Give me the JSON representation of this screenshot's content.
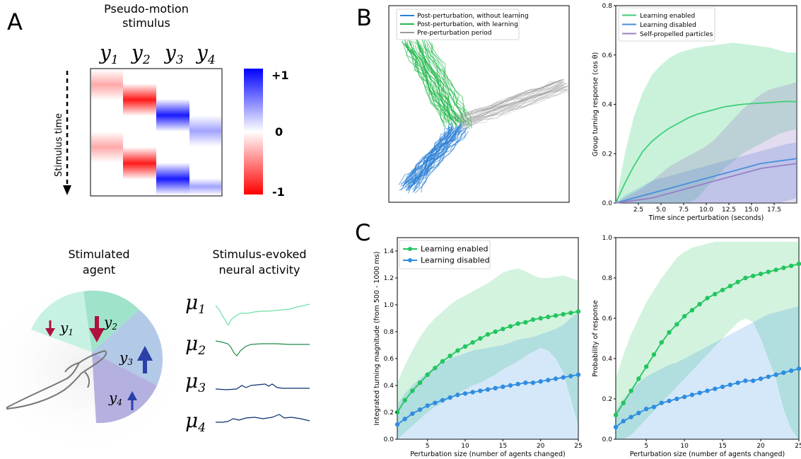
{
  "panels": {
    "A": "A",
    "B": "B",
    "C": "C"
  },
  "panelA": {
    "stim_title_1": "Pseudo-motion",
    "stim_title_2": "stimulus",
    "y_labels": [
      "y",
      "y",
      "y",
      "y"
    ],
    "y_subs": [
      "1",
      "2",
      "3",
      "4"
    ],
    "time_label": "Stimulus time",
    "colorbar": {
      "top": "+1",
      "mid": "0",
      "bottom": "-1"
    },
    "agent_title_1": "Stimulated",
    "agent_title_2": "agent",
    "neural_title_1": "Stimulus-evoked",
    "neural_title_2": "neural activity",
    "mu_labels": [
      "μ",
      "μ",
      "μ",
      "μ"
    ],
    "mu_subs": [
      "1",
      "2",
      "3",
      "4"
    ],
    "sector_labels": [
      "y",
      "y",
      "y",
      "y"
    ],
    "sector_subs": [
      "1",
      "2",
      "3",
      "4"
    ]
  },
  "chart_data": [
    {
      "type": "line",
      "id": "trajectories",
      "legend": [
        "Post-perturbation, without learning",
        "Post-perturbation, with learning",
        "Pre-perturbation period"
      ],
      "colors": {
        "without": "#2a7fd4",
        "with": "#22b84a",
        "pre": "#9a9a9a"
      }
    },
    {
      "type": "line",
      "id": "group-turning",
      "xlabel": "Time since perturbation (seconds)",
      "ylabel": "Group turning response (cos θ)",
      "xlim": [
        0,
        20
      ],
      "ylim": [
        0,
        0.8
      ],
      "xticks": [
        2.5,
        5.0,
        7.5,
        10.0,
        12.5,
        15.0,
        17.5
      ],
      "yticks": [
        0.0,
        0.2,
        0.4,
        0.6,
        0.8
      ],
      "x": [
        0,
        1,
        2,
        3,
        4,
        5,
        6,
        7,
        8,
        9,
        10,
        11,
        12,
        13,
        14,
        15,
        16,
        17,
        18,
        19,
        20
      ],
      "series": [
        {
          "name": "Learning enabled",
          "color": "#3fcf7a",
          "values": [
            0.0,
            0.08,
            0.15,
            0.21,
            0.25,
            0.28,
            0.305,
            0.325,
            0.345,
            0.36,
            0.37,
            0.38,
            0.39,
            0.395,
            0.4,
            0.403,
            0.405,
            0.407,
            0.41,
            0.412,
            0.41
          ],
          "upper": [
            0.0,
            0.2,
            0.35,
            0.45,
            0.52,
            0.56,
            0.59,
            0.61,
            0.62,
            0.63,
            0.635,
            0.64,
            0.645,
            0.65,
            0.645,
            0.64,
            0.635,
            0.63,
            0.62,
            0.61,
            0.61
          ],
          "lower": [
            0.0,
            0.0,
            0.0,
            0.0,
            0.0,
            0.0,
            0.0,
            0.0,
            0.0,
            0.02,
            0.06,
            0.1,
            0.14,
            0.17,
            0.2,
            0.22,
            0.24,
            0.26,
            0.28,
            0.29,
            0.3
          ]
        },
        {
          "name": "Learning disabled",
          "color": "#4a8fd8",
          "values": [
            0.0,
            0.01,
            0.02,
            0.03,
            0.04,
            0.05,
            0.06,
            0.07,
            0.08,
            0.09,
            0.1,
            0.11,
            0.12,
            0.13,
            0.14,
            0.15,
            0.16,
            0.165,
            0.17,
            0.175,
            0.18
          ],
          "upper": [
            0.0,
            0.03,
            0.05,
            0.07,
            0.09,
            0.1,
            0.11,
            0.12,
            0.13,
            0.14,
            0.15,
            0.16,
            0.17,
            0.18,
            0.19,
            0.2,
            0.21,
            0.22,
            0.23,
            0.24,
            0.245
          ],
          "lower": [
            0.0,
            0.0,
            0.0,
            0.0,
            0.0,
            0.0,
            0.0,
            0.0,
            0.0,
            0.0,
            0.0,
            0.0,
            0.0,
            0.0,
            0.0,
            0.0,
            0.0,
            0.0,
            0.0,
            0.01,
            0.02
          ]
        },
        {
          "name": "Self-propelled particles",
          "color": "#9a7fc8",
          "values": [
            0.0,
            0.005,
            0.01,
            0.015,
            0.02,
            0.03,
            0.04,
            0.05,
            0.06,
            0.07,
            0.08,
            0.09,
            0.1,
            0.11,
            0.12,
            0.13,
            0.14,
            0.145,
            0.15,
            0.155,
            0.16
          ],
          "upper": [
            0.0,
            0.02,
            0.04,
            0.06,
            0.09,
            0.12,
            0.15,
            0.17,
            0.19,
            0.21,
            0.23,
            0.26,
            0.3,
            0.34,
            0.38,
            0.41,
            0.44,
            0.46,
            0.47,
            0.48,
            0.49
          ],
          "lower": [
            0.0,
            0.0,
            0.0,
            0.0,
            0.0,
            0.0,
            0.0,
            0.0,
            0.0,
            0.0,
            0.0,
            0.0,
            0.0,
            0.0,
            0.0,
            0.0,
            0.0,
            0.0,
            0.0,
            0.0,
            0.0
          ]
        }
      ]
    },
    {
      "type": "line",
      "id": "integrated-turning",
      "xlabel": "Perturbation size (number of agents changed)",
      "ylabel": "Integrated turning magnitude (from 500 - 1000 ms)",
      "xlim": [
        1,
        25
      ],
      "ylim": [
        0,
        1.5
      ],
      "xticks": [
        5,
        10,
        15,
        20,
        25
      ],
      "yticks": [
        0.0,
        0.2,
        0.4,
        0.6,
        0.8,
        1.0,
        1.2,
        1.4
      ],
      "x": [
        1,
        2,
        3,
        4,
        5,
        6,
        7,
        8,
        9,
        10,
        11,
        12,
        13,
        14,
        15,
        16,
        17,
        18,
        19,
        20,
        21,
        22,
        23,
        24,
        25
      ],
      "series": [
        {
          "name": "Learning enabled",
          "color": "#22c55e",
          "values": [
            0.2,
            0.29,
            0.36,
            0.42,
            0.48,
            0.53,
            0.58,
            0.62,
            0.66,
            0.69,
            0.72,
            0.75,
            0.78,
            0.8,
            0.82,
            0.84,
            0.86,
            0.87,
            0.89,
            0.9,
            0.91,
            0.92,
            0.93,
            0.94,
            0.95
          ],
          "upper": [
            0.42,
            0.55,
            0.66,
            0.76,
            0.84,
            0.9,
            0.95,
            1.0,
            1.04,
            1.07,
            1.1,
            1.13,
            1.16,
            1.2,
            1.24,
            1.26,
            1.27,
            1.25,
            1.22,
            1.2,
            1.2,
            1.21,
            1.22,
            1.2,
            1.18
          ],
          "lower": [
            0.0,
            0.05,
            0.1,
            0.15,
            0.2,
            0.24,
            0.27,
            0.3,
            0.34,
            0.37,
            0.4,
            0.42,
            0.45,
            0.48,
            0.52,
            0.55,
            0.58,
            0.62,
            0.65,
            0.68,
            0.66,
            0.6,
            0.5,
            0.3,
            0.1
          ]
        },
        {
          "name": "Learning disabled",
          "color": "#2f8de0",
          "values": [
            0.11,
            0.15,
            0.19,
            0.22,
            0.25,
            0.27,
            0.29,
            0.31,
            0.33,
            0.34,
            0.35,
            0.36,
            0.37,
            0.38,
            0.39,
            0.4,
            0.41,
            0.42,
            0.42,
            0.43,
            0.44,
            0.45,
            0.46,
            0.47,
            0.48
          ],
          "upper": [
            0.26,
            0.34,
            0.4,
            0.45,
            0.5,
            0.54,
            0.57,
            0.6,
            0.62,
            0.64,
            0.66,
            0.67,
            0.68,
            0.69,
            0.7,
            0.72,
            0.74,
            0.75,
            0.76,
            0.78,
            0.8,
            0.82,
            0.85,
            0.9,
            0.95
          ],
          "lower": [
            0.0,
            0.0,
            0.0,
            0.0,
            0.0,
            0.0,
            0.0,
            0.0,
            0.0,
            0.0,
            0.0,
            0.0,
            0.0,
            0.0,
            0.0,
            0.0,
            0.0,
            0.0,
            0.0,
            0.0,
            0.0,
            0.0,
            0.0,
            0.0,
            0.0
          ]
        }
      ]
    },
    {
      "type": "line",
      "id": "probability-response",
      "xlabel": "Perturbation size (number of agents changed)",
      "ylabel": "Probability of response",
      "xlim": [
        1,
        25
      ],
      "ylim": [
        0,
        1.0
      ],
      "xticks": [
        5,
        10,
        15,
        20,
        25
      ],
      "yticks": [
        0.0,
        0.2,
        0.4,
        0.6,
        0.8,
        1.0
      ],
      "x": [
        1,
        2,
        3,
        4,
        5,
        6,
        7,
        8,
        9,
        10,
        11,
        12,
        13,
        14,
        15,
        16,
        17,
        18,
        19,
        20,
        21,
        22,
        23,
        24,
        25
      ],
      "series": [
        {
          "name": "Learning enabled",
          "color": "#22c55e",
          "values": [
            0.12,
            0.18,
            0.24,
            0.3,
            0.36,
            0.42,
            0.48,
            0.53,
            0.57,
            0.61,
            0.64,
            0.67,
            0.7,
            0.72,
            0.74,
            0.76,
            0.78,
            0.8,
            0.81,
            0.82,
            0.83,
            0.84,
            0.85,
            0.86,
            0.87
          ],
          "upper": [
            0.3,
            0.42,
            0.52,
            0.6,
            0.68,
            0.74,
            0.8,
            0.85,
            0.9,
            0.93,
            0.95,
            0.96,
            0.97,
            0.98,
            0.98,
            0.98,
            0.98,
            0.98,
            0.98,
            0.98,
            0.98,
            0.98,
            0.98,
            0.98,
            0.98
          ],
          "lower": [
            0.0,
            0.0,
            0.02,
            0.06,
            0.1,
            0.14,
            0.18,
            0.22,
            0.26,
            0.3,
            0.34,
            0.38,
            0.42,
            0.46,
            0.5,
            0.54,
            0.58,
            0.6,
            0.58,
            0.5,
            0.4,
            0.3,
            0.15,
            0.05,
            0.0
          ]
        },
        {
          "name": "Learning disabled",
          "color": "#2f8de0",
          "values": [
            0.06,
            0.09,
            0.11,
            0.13,
            0.15,
            0.16,
            0.18,
            0.19,
            0.2,
            0.21,
            0.22,
            0.23,
            0.24,
            0.25,
            0.26,
            0.27,
            0.28,
            0.29,
            0.29,
            0.3,
            0.31,
            0.32,
            0.33,
            0.34,
            0.35
          ],
          "upper": [
            0.14,
            0.2,
            0.24,
            0.28,
            0.31,
            0.33,
            0.35,
            0.37,
            0.38,
            0.4,
            0.42,
            0.44,
            0.46,
            0.48,
            0.5,
            0.52,
            0.54,
            0.56,
            0.58,
            0.6,
            0.62,
            0.63,
            0.64,
            0.65,
            0.66
          ],
          "lower": [
            0.0,
            0.0,
            0.0,
            0.0,
            0.0,
            0.0,
            0.0,
            0.0,
            0.0,
            0.0,
            0.0,
            0.0,
            0.0,
            0.0,
            0.0,
            0.0,
            0.0,
            0.0,
            0.0,
            0.0,
            0.0,
            0.0,
            0.0,
            0.0,
            0.0
          ]
        }
      ]
    }
  ]
}
